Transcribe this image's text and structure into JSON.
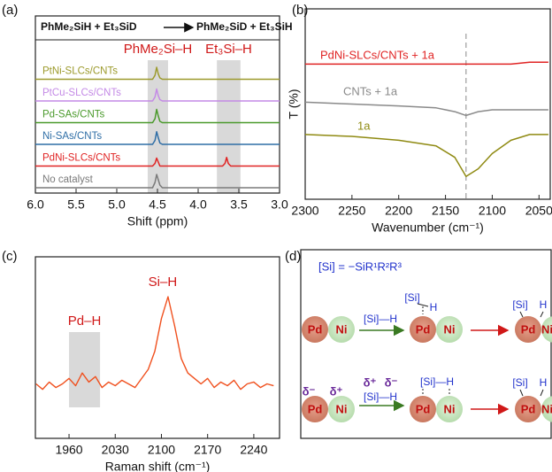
{
  "chart_data": [
    {
      "type": "line",
      "panel": "(a)",
      "reaction_left": "PhMe₂SiH + Et₃SiD",
      "reaction_right": "PhMe₂SiD + Et₃SiH",
      "x_label": "Shift (ppm)",
      "xlim": [
        6,
        3
      ],
      "xticks": [
        {
          "value": 6,
          "label": "6.0"
        },
        {
          "value": 5.5,
          "label": "5.5"
        },
        {
          "value": 5,
          "label": "5.0"
        },
        {
          "value": 4.5,
          "label": "4.5"
        },
        {
          "value": 4,
          "label": "4.0"
        },
        {
          "value": 3.5,
          "label": "3.5"
        },
        {
          "value": 3,
          "label": "3.0"
        }
      ],
      "highlights": [
        {
          "label": "PhMe₂Si–H",
          "range": [
            4.62,
            4.37
          ]
        },
        {
          "label": "Et₃Si–H",
          "range": [
            3.77,
            3.48
          ]
        }
      ],
      "x": [
        6,
        4.56,
        4.53,
        4.51,
        4.49,
        4.47,
        4.44,
        3.7,
        3.67,
        3.65,
        3.63,
        3.6,
        3
      ],
      "series": [
        {
          "name": "No catalyst",
          "color": "#7a7a7a",
          "values": [
            0,
            0,
            0.4,
            1,
            0.6,
            0.2,
            0,
            0,
            0,
            0,
            0,
            0,
            0
          ]
        },
        {
          "name": "PdNi-SLCs/CNTs",
          "color": "#e02424",
          "values": [
            0,
            0,
            0.2,
            0.6,
            0.3,
            0,
            0,
            0,
            0.2,
            0.65,
            0.2,
            0,
            0
          ]
        },
        {
          "name": "Ni-SAs/CNTs",
          "color": "#2f6ea6",
          "values": [
            0,
            0,
            0.3,
            0.95,
            0.5,
            0.1,
            0,
            0,
            0,
            0,
            0,
            0,
            0
          ]
        },
        {
          "name": "Pd-SAs/CNTs",
          "color": "#4b9a2c",
          "values": [
            0,
            0,
            0.3,
            1,
            0.5,
            0.1,
            0,
            0,
            0,
            0,
            0,
            0,
            0
          ]
        },
        {
          "name": "PtCu-SLCs/CNTs",
          "color": "#c48ae6",
          "values": [
            0,
            0,
            0.3,
            0.9,
            0.4,
            0.1,
            0,
            0,
            0,
            0,
            0,
            0,
            0
          ]
        },
        {
          "name": "PtNi-SLCs/CNTs",
          "color": "#9c9a2c",
          "values": [
            0,
            0,
            0.3,
            0.9,
            0.4,
            0.1,
            0,
            0,
            0,
            0,
            0,
            0,
            0
          ]
        }
      ]
    },
    {
      "type": "line",
      "panel": "(b)",
      "x_label": "Wavenumber (cm⁻¹)",
      "y_label": "T (%)",
      "xlim": [
        2300,
        2038
      ],
      "ylim": [
        0,
        100
      ],
      "xticks": [
        2300,
        2250,
        2200,
        2150,
        2100,
        2050
      ],
      "reference_line": 2128,
      "x": [
        2300,
        2250,
        2200,
        2160,
        2140,
        2128,
        2115,
        2100,
        2080,
        2060,
        2040
      ],
      "series": [
        {
          "name": "PdNi-SLCs/CNTs + 1a",
          "color": "#e02424",
          "values": [
            71,
            71,
            71,
            71,
            71,
            71,
            71,
            71,
            71,
            72,
            72
          ]
        },
        {
          "name": "CNTs + 1a",
          "color": "#8a8a8a",
          "values": [
            51,
            50,
            49,
            48,
            46,
            44,
            46,
            47,
            47,
            47,
            47
          ]
        },
        {
          "name": "1a",
          "color": "#8f8a12",
          "values": [
            34,
            33,
            31,
            28,
            22,
            12,
            16,
            24,
            31,
            34,
            34
          ]
        }
      ]
    },
    {
      "type": "line",
      "panel": "(c)",
      "x_label": "Raman shift (cm⁻¹)",
      "xlim": [
        1909,
        2279
      ],
      "ylim": [
        0,
        100
      ],
      "xticks": [
        1960,
        2030,
        2100,
        2170,
        2240
      ],
      "highlights": [
        {
          "label": "Pd–H",
          "range": [
            1960,
            2007
          ]
        }
      ],
      "peak_label": "Si–H",
      "color": "#f0501e",
      "x": [
        1910,
        1920,
        1930,
        1940,
        1950,
        1960,
        1970,
        1980,
        1990,
        2000,
        2010,
        2020,
        2030,
        2040,
        2050,
        2060,
        2070,
        2080,
        2090,
        2100,
        2110,
        2120,
        2130,
        2140,
        2150,
        2160,
        2170,
        2180,
        2190,
        2200,
        2210,
        2220,
        2230,
        2240,
        2250,
        2260,
        2270
      ],
      "values": [
        30,
        27,
        31,
        28,
        30,
        33,
        29,
        36,
        31,
        34,
        28,
        31,
        29,
        32,
        30,
        28,
        33,
        38,
        48,
        66,
        78,
        62,
        44,
        36,
        33,
        30,
        33,
        28,
        31,
        29,
        32,
        27,
        30,
        31,
        28,
        30,
        29
      ]
    }
  ],
  "scheme": {
    "panel": "(d)",
    "definition": "[Si] = −SiR¹R²R³",
    "metal_a": "Pd",
    "metal_b": "Ni",
    "reagent": "[Si]—H",
    "silyl": "[Si]",
    "hydride": "H",
    "delta_minus": "δ⁻",
    "delta_plus": "δ⁺"
  }
}
